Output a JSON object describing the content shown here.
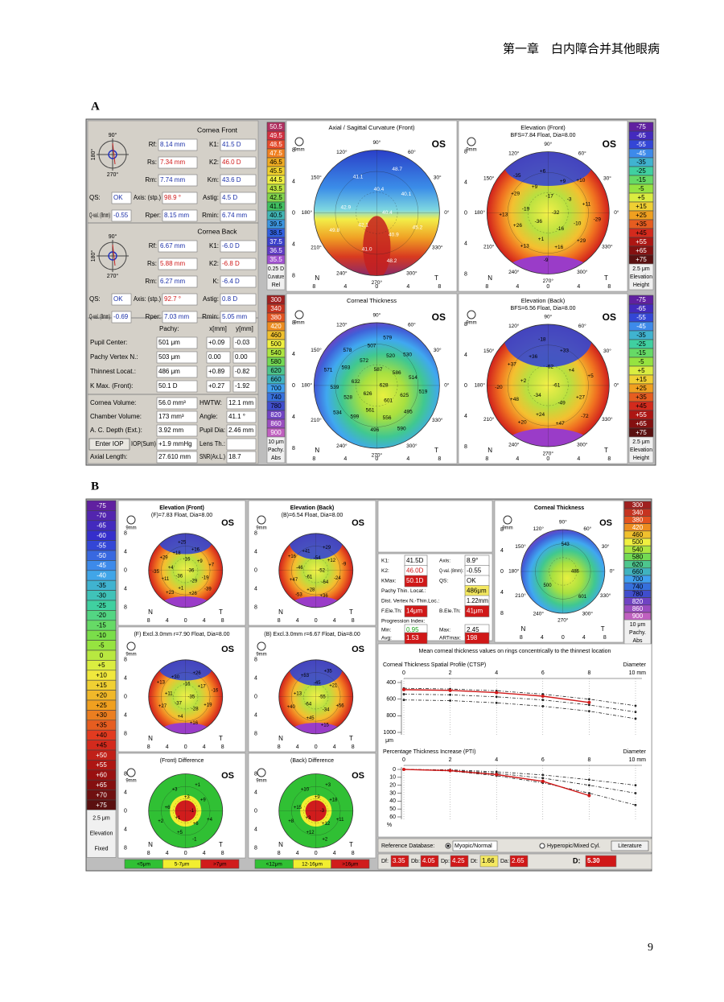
{
  "header": {
    "chapter": "第一章　白内障合并其他眼病",
    "page_number": "9"
  },
  "map_common": {
    "eye": "OS",
    "nasal": "N",
    "temporal": "T",
    "zoom": "9mm",
    "ticks": [
      8,
      4,
      0,
      4,
      8
    ],
    "degrees": [
      "90°",
      "120°",
      "150°",
      "180°",
      "210°",
      "240°",
      "270°",
      "300°",
      "330°",
      "0°",
      "30°",
      "60°"
    ]
  },
  "figure_a": {
    "label": "A",
    "icon_labels": [
      "90°",
      "270°",
      "180°"
    ],
    "cornea_front": {
      "title": "Cornea Front",
      "rows": [
        [
          "Rf:",
          "8.14 mm",
          "K1:",
          "41.5 D"
        ],
        [
          "Rs:",
          "7.34 mm",
          "K2:",
          "46.0 D"
        ],
        [
          "Rm:",
          "7.74 mm",
          "Km:",
          "43.6 D"
        ],
        [
          "QS:",
          "OK",
          "Axis: (stp.)",
          "98.9 °",
          "Astig:",
          "4.5 D"
        ],
        [
          "Q-val. (8mm)",
          "-0.55",
          "Rper:",
          "8.15 mm",
          "Rmin:",
          "6.74 mm"
        ]
      ]
    },
    "cornea_back": {
      "title": "Cornea Back",
      "rows": [
        [
          "Rf:",
          "6.67 mm",
          "K1:",
          "-6.0 D"
        ],
        [
          "Rs:",
          "5.88 mm",
          "K2:",
          "-6.8 D"
        ],
        [
          "Rm:",
          "6.27 mm",
          "K:",
          "-6.4 D"
        ],
        [
          "QS:",
          "OK",
          "Axis: (stp.)",
          "92.7 °",
          "Astig:",
          "0.8 D"
        ],
        [
          "Q-val. (8mm)",
          "-0.69",
          "Rper:",
          "7.03 mm",
          "Rmin:",
          "5.05 mm"
        ]
      ]
    },
    "pachy": {
      "header": [
        "Pachy:",
        "x[mm]",
        "y[mm]"
      ],
      "rows": [
        [
          "Pupil Center:",
          "501 μm",
          "+0.09",
          "-0.03"
        ],
        [
          "Pachy Vertex N.:",
          "503 μm",
          "0.00",
          "0.00"
        ],
        [
          "Thinnest Locat.:",
          "486 μm",
          "+0.89",
          "-0.82"
        ],
        [
          "K Max. (Front):",
          "50.1 D",
          "+0.27",
          "-1.92"
        ]
      ]
    },
    "volume": {
      "rows": [
        [
          "Cornea Volume:",
          "56.0 mm³",
          "HWTW:",
          "12.1 mm"
        ],
        [
          "Chamber Volume:",
          "173 mm³",
          "Angle:",
          "41.1 °"
        ],
        [
          "A. C. Depth (Ext.):",
          "3.92 mm",
          "Pupil Dia:",
          "2.46 mm"
        ],
        [
          "Axial Length:",
          "27.610 mm",
          "SNR(Ax.L.)",
          "18.7"
        ]
      ],
      "iop": {
        "button": "Enter IOP",
        "label": "IOP(Sum)",
        "value": "+1.9 mmHg",
        "lens": "Lens Th.:"
      }
    },
    "curvature_scale": {
      "values": [
        "50.5",
        "49.5",
        "48.5",
        "47.5",
        "46.5",
        "45.5",
        "44.5",
        "43.5",
        "42.5",
        "41.5",
        "40.5",
        "39.5",
        "38.5",
        "37.5",
        "36.5",
        "35.5"
      ],
      "step": "0.25 D",
      "kind": "Curvature",
      "mode": "Rel"
    },
    "elevation_scale": {
      "values": [
        "-75",
        "-65",
        "-55",
        "-45",
        "-35",
        "-25",
        "-15",
        "-5",
        "+5",
        "+15",
        "+25",
        "+35",
        "+45",
        "+55",
        "+65",
        "+75"
      ],
      "step": "2.5 μm",
      "kind": "Elevation",
      "mode": "Height"
    },
    "pachy_scale": {
      "values": [
        "300",
        "340",
        "380",
        "420",
        "460",
        "500",
        "540",
        "580",
        "620",
        "660",
        "700",
        "740",
        "780",
        "820",
        "860",
        "900"
      ],
      "step": "10 μm",
      "kind": "Pachy.",
      "mode": "Abs"
    },
    "maps": [
      {
        "title": "Axial / Sagittal Curvature (Front)",
        "values": [
          "40.4",
          "42.1",
          "40.4",
          "40.9",
          "42.9",
          "40.1",
          "41.0",
          "41.1",
          "45.2",
          "49.8",
          "48.7",
          "48.2"
        ]
      },
      {
        "title": "Elevation (Front)",
        "subtitle": "BFS=7.84 Float, Dia=8.00",
        "values": [
          "-32",
          "-36",
          "-17",
          "-16",
          "-19",
          "-3",
          "+1",
          "+9",
          "-10",
          "+26",
          "+9",
          "+16",
          "+29",
          "+11",
          "+13",
          "+6",
          "+29",
          "+13",
          "+10",
          "-9",
          "-35",
          "-29"
        ]
      },
      {
        "title": "Corneal Thickness",
        "values": [
          "628",
          "626",
          "587",
          "601",
          "632",
          "586",
          "561",
          "572",
          "625",
          "528",
          "520",
          "556",
          "593",
          "514",
          "599",
          "507",
          "495",
          "539",
          "530",
          "496",
          "578",
          "519",
          "534",
          "579",
          "590",
          "571"
        ]
      },
      {
        "title": "Elevation (Back)",
        "subtitle": "BFS=6.56 Float, Dia=8.00",
        "values": [
          "-61",
          "-34",
          "-62",
          "-49",
          "+2",
          "+4",
          "+24",
          "+36",
          "+27",
          "+48",
          "+33",
          "+47",
          "+37",
          "+5",
          "+20",
          "-18",
          "-72",
          "-20"
        ]
      }
    ]
  },
  "figure_b": {
    "label": "B",
    "elevation_scale": {
      "values": [
        "-75",
        "-70",
        "-65",
        "-60",
        "-55",
        "-50",
        "-45",
        "-40",
        "-35",
        "-30",
        "-25",
        "-20",
        "-15",
        "-10",
        "-5",
        "0",
        "+5",
        "+10",
        "+15",
        "+20",
        "+25",
        "+30",
        "+35",
        "+40",
        "+45",
        "+50",
        "+55",
        "+60",
        "+65",
        "+70",
        "+75"
      ],
      "step": "2.5 μm",
      "kind": "Elevation",
      "mode": "Fixed"
    },
    "maps": [
      {
        "title": "Elevation (Front)",
        "subtitle": "(F)=7.83 Float, Dia=8.00",
        "values": [
          "-36",
          "-36",
          "-16",
          "-29",
          "+4",
          "+9",
          "+1",
          "+18",
          "-19",
          "+11",
          "+16",
          "+26",
          "+29",
          "+7",
          "+23",
          "+25",
          "-39",
          "-35"
        ]
      },
      {
        "title": "Elevation (Back)",
        "subtitle": "(B)=6.54 Float, Dia=8.00",
        "values": [
          "-52",
          "-61",
          "-54",
          "-64",
          "-46",
          "+12",
          "+28",
          "+41",
          "-24",
          "+47",
          "+29",
          "+36",
          "+16",
          "-9",
          "-53"
        ]
      },
      {
        "subtitle": "(F) Excl.3.0mm r=7.90 Float, Dia=8.00",
        "values": [
          "-35",
          "-37",
          "-16",
          "-28",
          "+11",
          "+17",
          "+4",
          "+30",
          "+19",
          "+27",
          "+26",
          "+16",
          "+13",
          "-16"
        ]
      },
      {
        "subtitle": "(B) Excl.3.0mm r=6.67 Float, Dia=8.00",
        "values": [
          "-55",
          "-64",
          "-45",
          "-34",
          "+13",
          "+21",
          "+45",
          "+53",
          "+56",
          "+40",
          "+35",
          "+15"
        ]
      },
      {
        "subtitle": "(Front) Difference",
        "values": [
          "-1",
          "+1",
          "+3",
          "+6",
          "+6",
          "+9",
          "+5",
          "+3",
          "+4",
          "+2",
          "+1",
          "-1"
        ],
        "legend": [
          "<5μm",
          "5-7μm",
          ">7μm"
        ]
      },
      {
        "subtitle": "(Back) Difference",
        "values": [
          "-3",
          "+3",
          "+9",
          "+12",
          "+15",
          "+18",
          "+12",
          "+10",
          "+11",
          "+8",
          "+3",
          "+2"
        ],
        "legend": [
          "<12μm",
          "12-16μm",
          ">16μm"
        ]
      }
    ],
    "thickness_map": {
      "title": "Corneal Thickness",
      "values": [
        "486",
        "500",
        "543",
        "601"
      ]
    },
    "pachy_scale": {
      "values": [
        "300",
        "340",
        "380",
        "420",
        "460",
        "500",
        "540",
        "580",
        "620",
        "660",
        "700",
        "740",
        "780",
        "820",
        "860",
        "900"
      ],
      "step": "10 μm",
      "kind": "Pachy.",
      "mode": "Abs"
    },
    "indices": {
      "rows": [
        [
          "K1:",
          "41.5D",
          "Axis:",
          "8.9°"
        ],
        [
          "K2:",
          "46.0D",
          "Q-val. (8mm):",
          "-0.55"
        ],
        [
          "KMax:",
          "50.1D",
          "QS:",
          "OK"
        ],
        [
          "Pachy Thin. Locat.:",
          "486μm"
        ],
        [
          "Dist. Vertex N.-Thin.Loc.:",
          "1.22mm"
        ],
        [
          "F.Ele.Th:",
          "14μm",
          "B.Ele.Th:",
          "41μm"
        ]
      ],
      "progression": {
        "title": "Progression Index:",
        "rows": [
          [
            "Min:",
            "0.95",
            "Max:",
            "2.45"
          ],
          [
            "Avg:",
            "1.53",
            "ARTmax:",
            "198"
          ]
        ]
      }
    },
    "profile": {
      "title": "Mean corneal thickness values on rings concentrically to the thinnest location",
      "x_label": "Diameter",
      "x": [
        0,
        2,
        4,
        6,
        8,
        10
      ],
      "xlim": [
        0,
        10
      ],
      "xticks": [
        0,
        2,
        4,
        6,
        8,
        {
          "value": 10,
          "label": "10 mm"
        }
      ],
      "ctsp": {
        "title": "Corneal Thickness Spatial Profile (CTSP)",
        "unit": "μm",
        "ylim": [
          400,
          1000
        ],
        "yticks": [
          400,
          600,
          800,
          1000
        ],
        "series": [
          {
            "color": "#222222",
            "dash": true,
            "values": [
              470,
              478,
              500,
              540,
              600,
              680
            ]
          },
          {
            "color": "#222222",
            "dash": true,
            "values": [
              540,
              548,
              572,
              610,
              670,
              755
            ]
          },
          {
            "color": "#222222",
            "dash": true,
            "values": [
              610,
              618,
              645,
              685,
              745,
              835
            ]
          },
          {
            "color": "#d01818",
            "dash": false,
            "values": [
              486,
              495,
              522,
              565,
              640,
              null
            ]
          }
        ]
      },
      "pti": {
        "title": "Percentage Thickness Increase (PTI)",
        "unit": "%",
        "ylim": [
          0,
          60
        ],
        "yticks": [
          0,
          10,
          20,
          30,
          40,
          50,
          60
        ],
        "series": [
          {
            "color": "#222222",
            "dash": true,
            "values": [
              0,
              0.5,
              3,
              7,
              13,
              20
            ]
          },
          {
            "color": "#222222",
            "dash": true,
            "values": [
              0,
              1,
              5,
              11,
              20,
              30
            ]
          },
          {
            "color": "#222222",
            "dash": true,
            "values": [
              0,
              2,
              8,
              17,
              30,
              45
            ]
          },
          {
            "color": "#d01818",
            "dash": false,
            "values": [
              0,
              1.5,
              6.5,
              15,
              33,
              null
            ]
          }
        ]
      }
    },
    "reference": {
      "label": "Reference Database:",
      "option1": "Myopic/Normal",
      "option2": "Hyperopic/Mixed Cyl.",
      "button": "Literature"
    },
    "d_values": [
      [
        "Df:",
        "3.35"
      ],
      [
        "Db:",
        "4.05"
      ],
      [
        "Dp:",
        "4.25"
      ],
      [
        "Dt:",
        "1.66"
      ],
      [
        "Da:",
        "2.65"
      ],
      [
        "D:",
        "5.30"
      ]
    ]
  }
}
